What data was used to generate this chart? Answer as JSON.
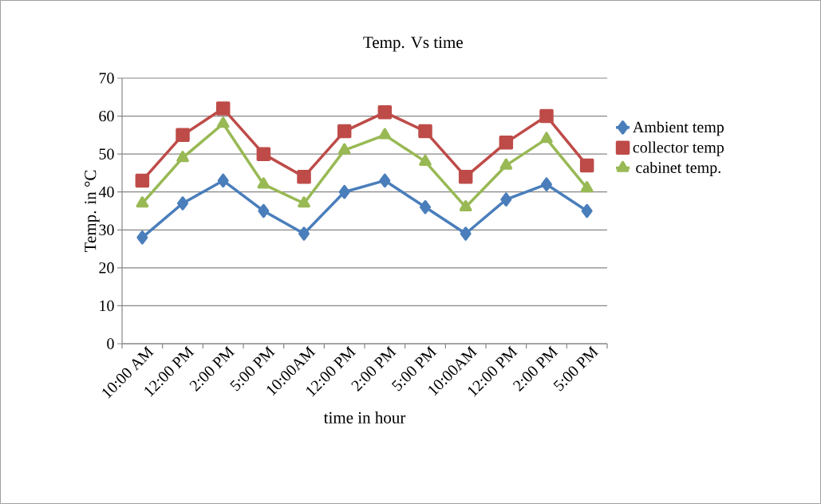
{
  "chart_data": {
    "type": "line",
    "title": "Temp. Vs time",
    "xlabel": "time in hour",
    "ylabel": "Temp. in °C",
    "categories": [
      "10:00 AM",
      "12:00 PM",
      "2:00 PM",
      "5:00 PM",
      "10:00AM",
      "12:00 PM",
      "2:00 PM",
      "5:00 PM",
      "10:00AM",
      "12:00 PM",
      "2:00 PM",
      "5:00 PM"
    ],
    "series": [
      {
        "name": "Ambient temp",
        "color": "#4a7ebb",
        "marker": "diamond",
        "values": [
          28,
          37,
          43,
          35,
          29,
          40,
          43,
          36,
          29,
          38,
          42,
          35
        ]
      },
      {
        "name": "collector temp",
        "color": "#be4b48",
        "marker": "square",
        "values": [
          43,
          55,
          62,
          50,
          44,
          56,
          61,
          56,
          44,
          53,
          60,
          47
        ]
      },
      {
        "name": "cabinet temp.",
        "color": "#98b954",
        "marker": "triangle",
        "values": [
          37,
          49,
          58,
          42,
          37,
          51,
          55,
          48,
          36,
          47,
          54,
          41
        ]
      }
    ],
    "ylim": [
      0,
      70
    ],
    "yticks": [
      0,
      10,
      20,
      30,
      40,
      50,
      60,
      70
    ],
    "grid": "y",
    "legend": "right",
    "line_style": "solid"
  }
}
